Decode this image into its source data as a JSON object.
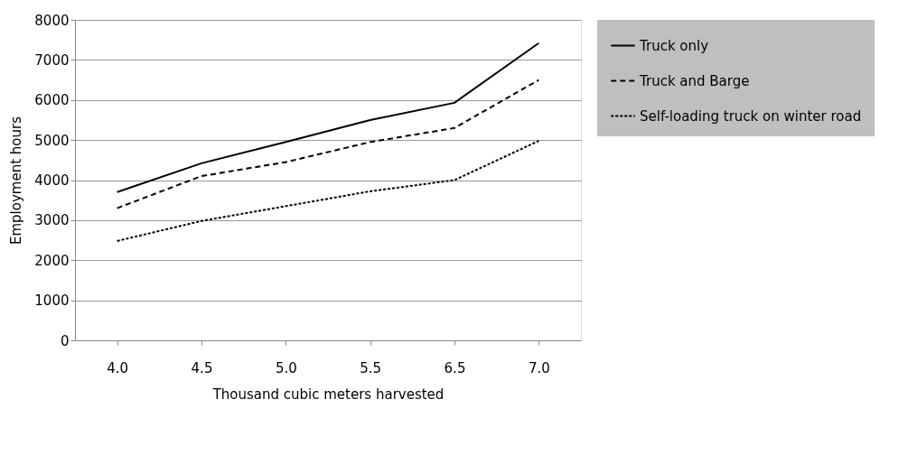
{
  "chart_data": {
    "type": "line",
    "xlabel": "Thousand cubic meters harvested",
    "ylabel": "Employment hours",
    "categories": [
      "4.0",
      "4.5",
      "5.0",
      "5.5",
      "6.5",
      "7.0"
    ],
    "series": [
      {
        "name": "Truck only",
        "color": "#000000",
        "line_style": "solid",
        "values": [
          3700,
          4420,
          4950,
          5500,
          5930,
          7420
        ]
      },
      {
        "name": "Truck and Barge",
        "color": "#000000",
        "line_style": "dashed",
        "values": [
          3300,
          4100,
          4450,
          4950,
          5300,
          6500
        ]
      },
      {
        "name": "Self-loading truck on winter road",
        "color": "#000000",
        "line_style": "dotted",
        "values": [
          2480,
          2980,
          3350,
          3720,
          4000,
          4980
        ]
      }
    ],
    "ylim": [
      0,
      8000
    ],
    "yticks": [
      0,
      1000,
      2000,
      3000,
      4000,
      5000,
      6000,
      7000,
      8000
    ],
    "grid": "y",
    "legend": "right",
    "marker": "none"
  }
}
